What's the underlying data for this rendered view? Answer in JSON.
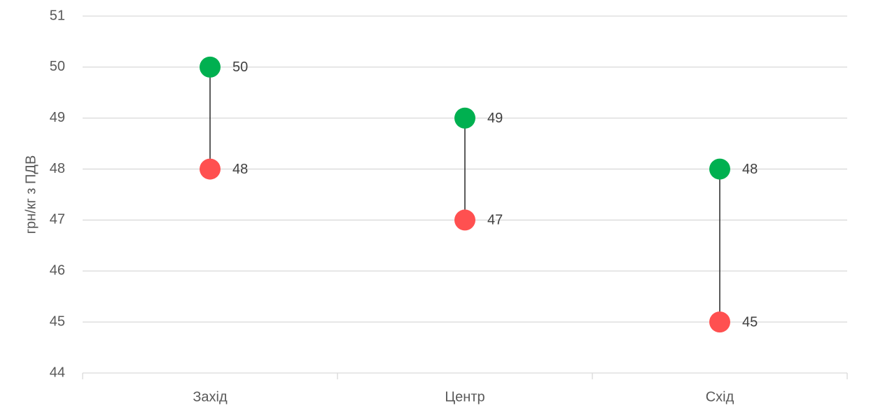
{
  "chart_data": {
    "type": "dumbbell",
    "y_label": "грн/кг з ПДВ",
    "categories": [
      "Захід",
      "Центр",
      "Схід"
    ],
    "series": [
      {
        "color": "#00b050",
        "values": [
          50,
          49,
          48
        ]
      },
      {
        "color": "#ff5050",
        "values": [
          48,
          47,
          45
        ]
      }
    ],
    "connector_color": "#262626",
    "ylim": [
      44,
      51
    ],
    "yticks": [
      44,
      45,
      46,
      47,
      48,
      49,
      50,
      51
    ],
    "grid": true
  }
}
